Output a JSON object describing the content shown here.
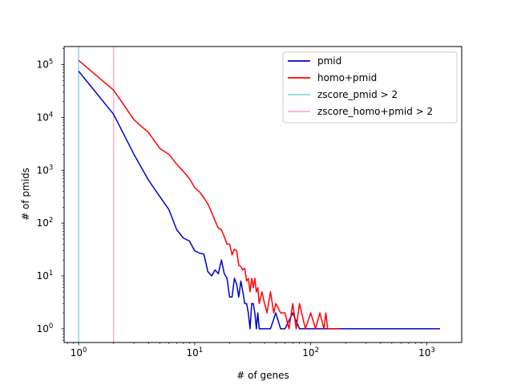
{
  "chart_data": {
    "type": "line",
    "title": "",
    "xlabel": "# of genes",
    "ylabel": "# of pmids",
    "xscale": "log",
    "yscale": "log",
    "xlim": [
      0.75,
      2000
    ],
    "ylim": [
      0.55,
      220000
    ],
    "grid": false,
    "legend_position": "top-right",
    "x_ticks": [
      {
        "value": 1,
        "mantissa": "10",
        "exp": "0"
      },
      {
        "value": 10,
        "mantissa": "10",
        "exp": "1"
      },
      {
        "value": 100,
        "mantissa": "10",
        "exp": "2"
      },
      {
        "value": 1000,
        "mantissa": "10",
        "exp": "3"
      }
    ],
    "y_ticks": [
      {
        "value": 1,
        "mantissa": "10",
        "exp": "0"
      },
      {
        "value": 10,
        "mantissa": "10",
        "exp": "1"
      },
      {
        "value": 100,
        "mantissa": "10",
        "exp": "2"
      },
      {
        "value": 1000,
        "mantissa": "10",
        "exp": "3"
      },
      {
        "value": 10000,
        "mantissa": "10",
        "exp": "4"
      },
      {
        "value": 100000,
        "mantissa": "10",
        "exp": "5"
      }
    ],
    "series": [
      {
        "name": "pmid",
        "color": "#0000cc",
        "x": [
          1,
          2,
          3,
          4,
          5,
          6,
          7,
          8,
          9,
          10,
          11,
          12,
          13,
          14,
          15,
          16,
          17,
          18,
          19,
          20,
          21,
          22,
          23,
          24,
          25,
          26,
          27,
          28,
          29,
          30,
          31,
          32,
          33,
          34,
          35,
          36,
          40,
          45,
          50,
          55,
          60,
          70,
          80,
          90,
          100,
          110,
          120,
          130,
          150,
          200,
          300,
          500,
          800,
          1300
        ],
        "y": [
          75000,
          11500,
          2000,
          650,
          320,
          180,
          75,
          52,
          46,
          30,
          27,
          26,
          12,
          10,
          13,
          11,
          20,
          11,
          9,
          4,
          4,
          9,
          7,
          4,
          8,
          5,
          3,
          3,
          2,
          1,
          3,
          3,
          2,
          1,
          2,
          1,
          1,
          1,
          2,
          1,
          1,
          2,
          1,
          1,
          1,
          1,
          1,
          1,
          1,
          1,
          1,
          1,
          1,
          1
        ]
      },
      {
        "name": "homo+pmid",
        "color": "#ff0000",
        "x": [
          1,
          2,
          3,
          4,
          5,
          6,
          7,
          8,
          9,
          10,
          11,
          12,
          13,
          14,
          15,
          16,
          17,
          18,
          19,
          20,
          21,
          22,
          23,
          24,
          25,
          26,
          27,
          28,
          29,
          30,
          31,
          32,
          33,
          34,
          35,
          36,
          38,
          40,
          42,
          45,
          48,
          50,
          55,
          60,
          65,
          70,
          75,
          80,
          90,
          100,
          110,
          120,
          130,
          135,
          140,
          160,
          180
        ],
        "y": [
          120000,
          33000,
          9000,
          5200,
          2600,
          2000,
          1300,
          950,
          700,
          470,
          390,
          300,
          230,
          160,
          110,
          80,
          75,
          55,
          40,
          40,
          25,
          32,
          30,
          16,
          15,
          13,
          14,
          8,
          9,
          5,
          9,
          6,
          9,
          5,
          6,
          3,
          5,
          3,
          2,
          5,
          2,
          3,
          2,
          2,
          1,
          3,
          1,
          3,
          1,
          2,
          1,
          2,
          1,
          2,
          1,
          1,
          1
        ]
      }
    ],
    "vlines": [
      {
        "name": "zscore_pmid > 2",
        "x": 1,
        "color": "#8fd3e8"
      },
      {
        "name": "zscore_homo+pmid > 2",
        "x": 2,
        "color": "#ffb0bb"
      }
    ]
  }
}
